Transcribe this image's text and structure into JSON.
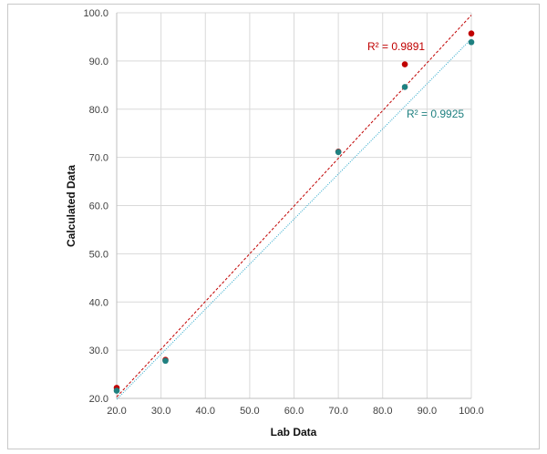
{
  "chart_data": {
    "type": "scatter",
    "xlabel": "Lab Data",
    "ylabel": "Calculated Data",
    "xlim": [
      20,
      100
    ],
    "ylim": [
      20,
      100
    ],
    "x_ticks": [
      "20.0",
      "30.0",
      "40.0",
      "50.0",
      "60.0",
      "70.0",
      "80.0",
      "90.0",
      "100.0"
    ],
    "y_ticks": [
      "20.0",
      "30.0",
      "40.0",
      "50.0",
      "60.0",
      "70.0",
      "80.0",
      "90.0",
      "100.0"
    ],
    "grid": true,
    "series": [
      {
        "color": "#c00000",
        "points": [
          [
            20,
            22.2
          ],
          [
            31,
            28.0
          ],
          [
            70,
            71.2
          ],
          [
            85,
            89.3
          ],
          [
            100,
            95.7
          ]
        ],
        "trendline": {
          "x": [
            20,
            100
          ],
          "y": [
            20.3,
            99.5
          ],
          "style": "dashed"
        },
        "r2_label": "R² = 0.9891"
      },
      {
        "color": "#1f8080",
        "points": [
          [
            20,
            21.6
          ],
          [
            31,
            27.8
          ],
          [
            70,
            71.1
          ],
          [
            85,
            84.6
          ],
          [
            100,
            93.9
          ]
        ],
        "trendline": {
          "x": [
            20,
            100
          ],
          "y": [
            19.8,
            94.6
          ],
          "style": "dotted",
          "color": "#27a6c9"
        },
        "r2_label": "R² = 0.9925"
      }
    ]
  }
}
